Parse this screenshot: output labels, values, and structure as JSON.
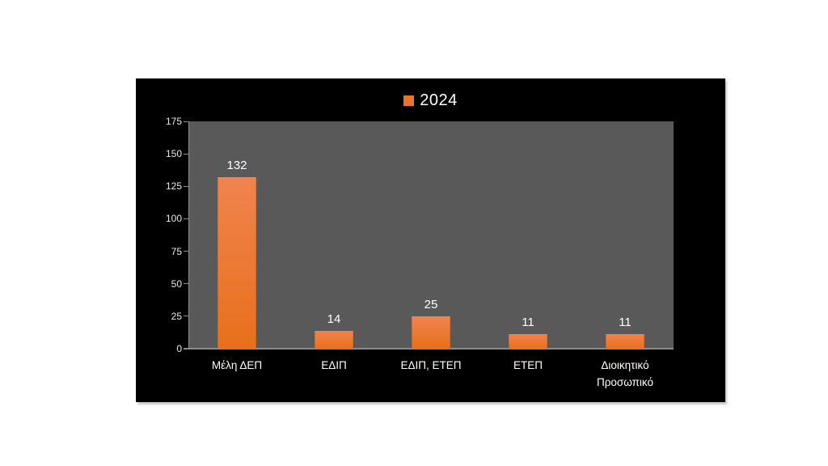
{
  "colors": {
    "page_bg": "#ffffff",
    "panel_bg": "#000000",
    "plot_bg": "#595959",
    "axis_line": "#8c8c8c",
    "tick_label": "#e8e8e8",
    "value_label": "#ffffff",
    "category_label": "#ffffff",
    "legend_text": "#ffffff",
    "legend_swatch": "#ed7430",
    "bar_top": "#f0834e",
    "bar_bottom": "#e8701c"
  },
  "chart_data": {
    "type": "bar",
    "title": "",
    "xlabel": "",
    "ylabel": "",
    "legend": {
      "label": "2024",
      "position": "top-center"
    },
    "categories": [
      "Μέλη ΔΕΠ",
      "ΕΔΙΠ",
      "ΕΔΙΠ, ΕΤΕΠ",
      "ΕΤΕΠ",
      "Διοικητικό Προσωπικό"
    ],
    "series": [
      {
        "name": "2024",
        "values": [
          132,
          14,
          25,
          11,
          11
        ]
      }
    ],
    "ylim": [
      0,
      175
    ],
    "yticks": [
      0,
      25,
      50,
      75,
      100,
      125,
      150,
      175
    ],
    "grid": false,
    "plot_background": "#595959",
    "bar_color": "#ed7430"
  }
}
